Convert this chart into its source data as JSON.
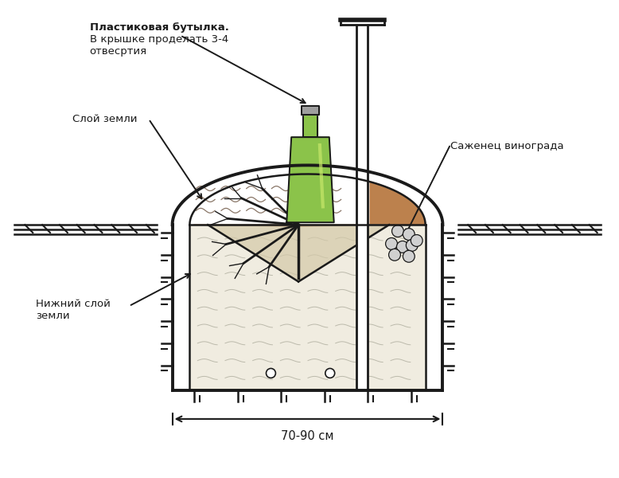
{
  "background_color": "#ffffff",
  "labels": {
    "bottle_title": "Пластиковая бутылка.",
    "bottle_desc1": "В крышке проделать 3-4",
    "bottle_desc2": "отвесртия",
    "soil_layer": "Слой земли",
    "bottom_soil1": "Нижний слой",
    "bottom_soil2": "земли",
    "sapling": "Саженец винограда",
    "dimension": "70-90 см"
  },
  "colors": {
    "soil_brown": "#b5733a",
    "bottle_green": "#8bc34a",
    "bottle_cap": "#9e9e9e",
    "light_soil": "#d4c9a8",
    "wall": "#1a1a1a",
    "gravel": "#d0d0d0",
    "white": "#ffffff"
  }
}
